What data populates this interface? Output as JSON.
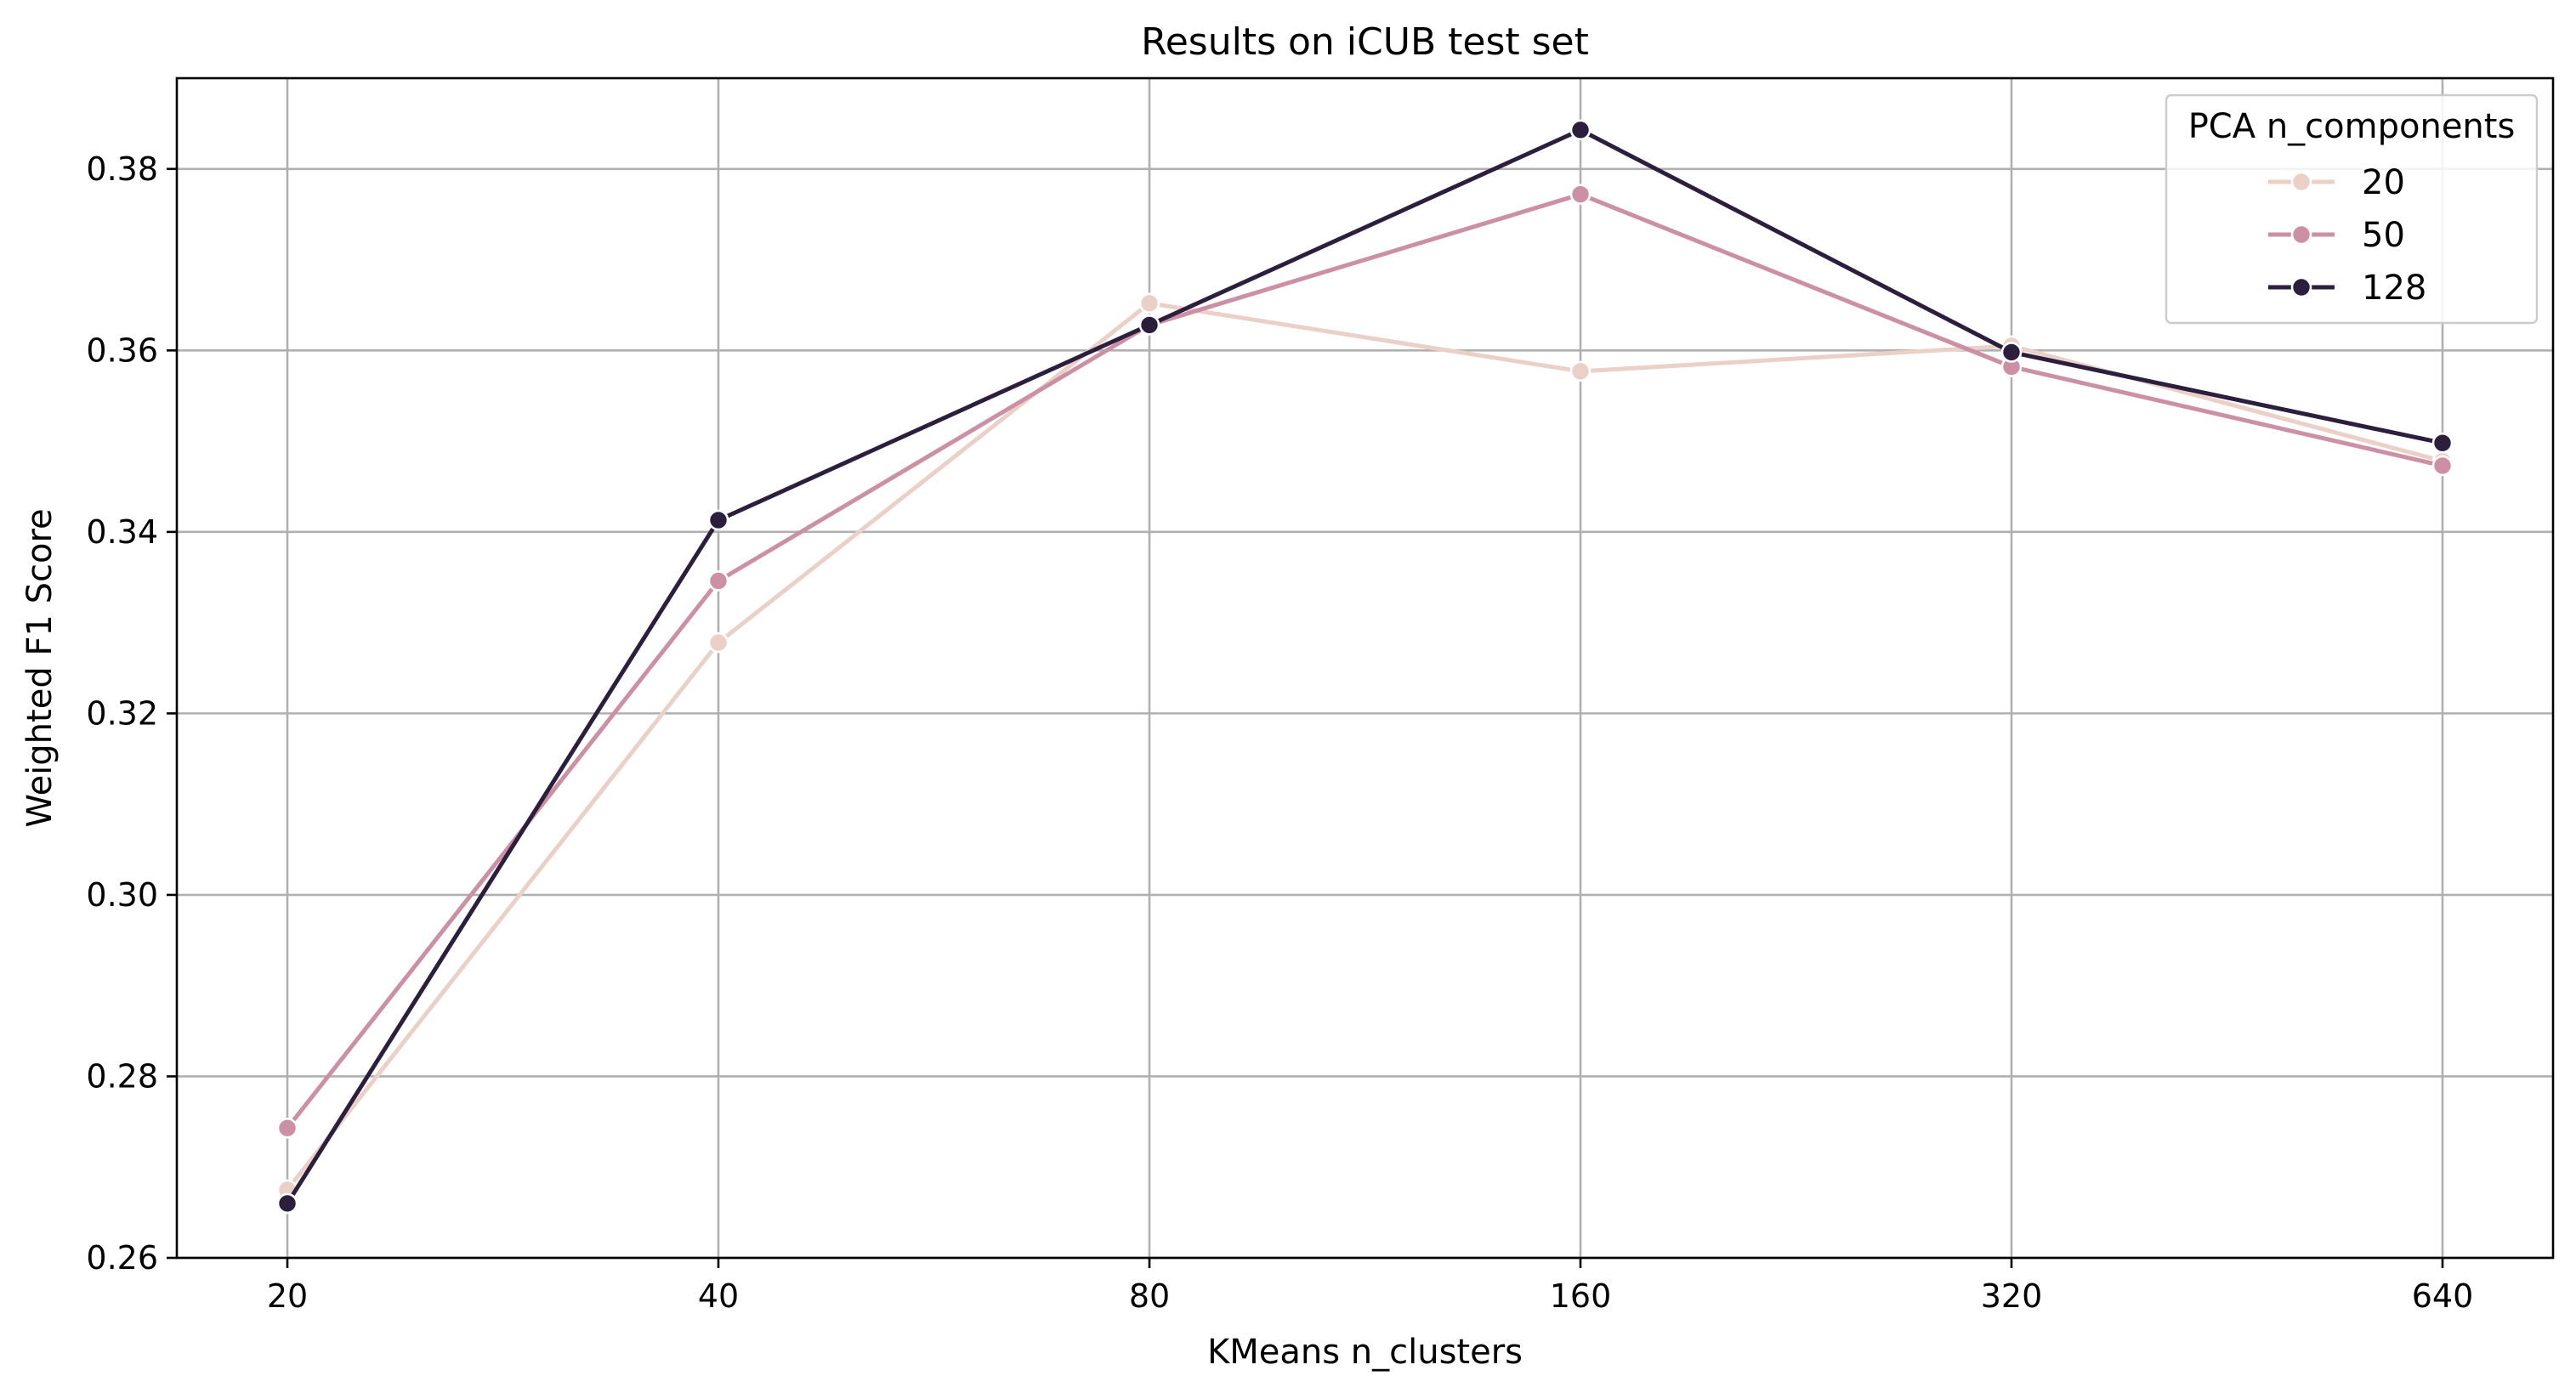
{
  "chart_data": {
    "type": "line",
    "title": "Results on iCUB test set",
    "xlabel": "KMeans n_clusters",
    "ylabel": "Weighted F1 Score",
    "categories": [
      "20",
      "40",
      "80",
      "160",
      "320",
      "640"
    ],
    "ylim": [
      0.26,
      0.39
    ],
    "yticks": [
      0.26,
      0.28,
      0.3,
      0.32,
      0.34,
      0.36,
      0.38
    ],
    "ytick_labels": [
      "0.26",
      "0.28",
      "0.30",
      "0.32",
      "0.34",
      "0.36",
      "0.38"
    ],
    "grid": true,
    "legend": {
      "title": "PCA n_components",
      "position": "top-right"
    },
    "series": [
      {
        "name": "20",
        "color": "#ebd0c8",
        "values": [
          0.2675,
          0.3278,
          0.3652,
          0.3577,
          0.3605,
          0.3478
        ]
      },
      {
        "name": "50",
        "color": "#cc8fa3",
        "values": [
          0.2743,
          0.3346,
          0.3628,
          0.3772,
          0.3582,
          0.3473
        ]
      },
      {
        "name": "128",
        "color": "#2c1e3d",
        "values": [
          0.266,
          0.3413,
          0.3628,
          0.3843,
          0.3598,
          0.3498
        ]
      }
    ]
  }
}
